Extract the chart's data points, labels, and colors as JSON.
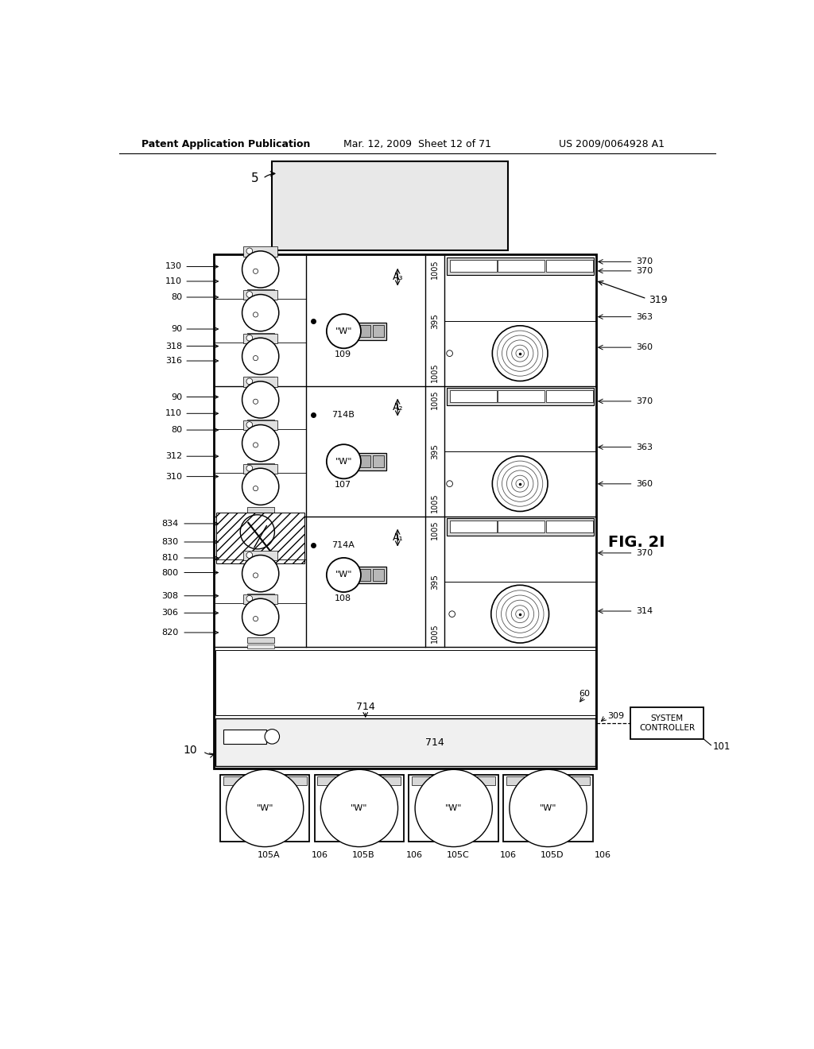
{
  "header_left": "Patent Application Publication",
  "header_center": "Mar. 12, 2009  Sheet 12 of 71",
  "header_right": "US 2009/0064928 A1",
  "fig_label": "FIG. 2I",
  "bg_color": "#ffffff"
}
